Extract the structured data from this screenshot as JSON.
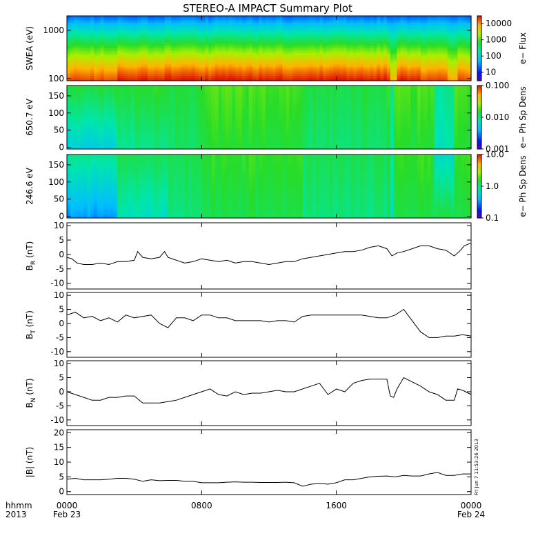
{
  "chart_data": {
    "type": "multi-panel",
    "title": "STEREO-A IMPACT Summary Plot",
    "x_axis": {
      "range_hours": [
        0,
        24
      ],
      "ticks": [
        {
          "hour": 0,
          "label": "0000",
          "sublabel": "Feb 23"
        },
        {
          "hour": 8,
          "label": "0800",
          "sublabel": ""
        },
        {
          "hour": 16,
          "label": "1600",
          "sublabel": ""
        },
        {
          "hour": 24,
          "label": "0000",
          "sublabel": "Feb 24"
        }
      ],
      "corner_label_1": "hhmm",
      "corner_label_2": "2013"
    },
    "side_stamp": "Fri Jun  7 11:53:26 2013",
    "spectrograms": [
      {
        "type": "heatmap",
        "ylabel": "SWEA (eV)",
        "ylog": true,
        "ylim": [
          90,
          2000
        ],
        "yticks": [
          {
            "v": 1000,
            "label": "1000"
          },
          {
            "v": 100,
            "label": "100"
          }
        ],
        "cbar_label": "e− Flux",
        "cbar_log": true,
        "cbar_range": [
          3,
          30000
        ],
        "cbar_ticks": [
          {
            "v": 10000,
            "label": "10000"
          },
          {
            "v": 1000,
            "label": "1000"
          },
          {
            "v": 100,
            "label": "100"
          },
          {
            "v": 10,
            "label": "10"
          }
        ]
      },
      {
        "type": "heatmap",
        "ylabel": "650.7 eV",
        "ylog": false,
        "ylim": [
          -5,
          180
        ],
        "yticks": [
          {
            "v": 150,
            "label": "150"
          },
          {
            "v": 100,
            "label": "100"
          },
          {
            "v": 50,
            "label": "50"
          },
          {
            "v": 0,
            "label": "0"
          }
        ],
        "cbar_label": "e− Ph Sp Dens",
        "cbar_log": true,
        "cbar_range": [
          0.001,
          0.1
        ],
        "cbar_ticks": [
          {
            "v": 0.1,
            "label": "0.100"
          },
          {
            "v": 0.01,
            "label": "0.010"
          },
          {
            "v": 0.001,
            "label": "0.001"
          }
        ]
      },
      {
        "type": "heatmap",
        "ylabel": "246.6 eV",
        "ylog": false,
        "ylim": [
          -5,
          180
        ],
        "yticks": [
          {
            "v": 150,
            "label": "150"
          },
          {
            "v": 100,
            "label": "100"
          },
          {
            "v": 50,
            "label": "50"
          },
          {
            "v": 0,
            "label": "0"
          }
        ],
        "cbar_label": "e− Ph Sp Dens",
        "cbar_log": true,
        "cbar_range": [
          0.1,
          10
        ],
        "cbar_ticks": [
          {
            "v": 10,
            "label": "10.0"
          },
          {
            "v": 1,
            "label": "1.0"
          },
          {
            "v": 0.1,
            "label": "0.1"
          }
        ]
      }
    ],
    "line_panels": [
      {
        "type": "line",
        "ylabel": "B",
        "ylabel_sub": "R",
        "ylabel_unit": " (nT)",
        "ylim": [
          -12,
          11
        ],
        "yticks": [
          10,
          5,
          0,
          -5,
          -10
        ],
        "series": [
          {
            "x": [
              0,
              0.3,
              0.6,
              1,
              1.5,
              2,
              2.5,
              3,
              3.5,
              4,
              4.2,
              4.5,
              5,
              5.5,
              5.8,
              6,
              6.5,
              7,
              7.5,
              8,
              8.5,
              9,
              9.5,
              10,
              10.5,
              11,
              11.5,
              12,
              12.5,
              13,
              13.5,
              14,
              14.5,
              15,
              15.5,
              16,
              16.5,
              17,
              17.5,
              18,
              18.5,
              19,
              19.3,
              19.6,
              20,
              20.5,
              21,
              21.5,
              22,
              22.5,
              23,
              23.3,
              23.6,
              24
            ],
            "y": [
              -1,
              -1.5,
              -3,
              -3.5,
              -3.5,
              -3,
              -3.5,
              -2.5,
              -2.5,
              -2,
              1,
              -1,
              -1.5,
              -1,
              1,
              -1,
              -2,
              -3,
              -2.5,
              -1.5,
              -2,
              -2.5,
              -2,
              -3,
              -2.5,
              -2.5,
              -3,
              -3.5,
              -3,
              -2.5,
              -2.5,
              -1.5,
              -1,
              -0.5,
              0,
              0.5,
              1,
              1,
              1.5,
              2.5,
              3,
              2,
              -0.5,
              0.5,
              1,
              2,
              3,
              3,
              2,
              1.5,
              -0.5,
              1,
              3,
              4
            ]
          }
        ]
      },
      {
        "type": "line",
        "ylabel": "B",
        "ylabel_sub": "T",
        "ylabel_unit": " (nT)",
        "ylim": [
          -12,
          11
        ],
        "yticks": [
          10,
          5,
          0,
          -5,
          -10
        ],
        "series": [
          {
            "x": [
              0,
              0.5,
              1,
              1.5,
              2,
              2.5,
              3,
              3.5,
              4,
              4.5,
              5,
              5.5,
              6,
              6.5,
              7,
              7.5,
              8,
              8.5,
              9,
              9.5,
              10,
              10.5,
              11,
              11.5,
              12,
              12.5,
              13,
              13.5,
              14,
              14.5,
              15,
              15.5,
              16,
              16.5,
              17,
              17.5,
              18,
              18.5,
              19,
              19.5,
              20,
              20.5,
              21,
              21.5,
              22,
              22.5,
              23,
              23.5,
              24
            ],
            "y": [
              3,
              4,
              2,
              2.5,
              1,
              2,
              0.5,
              3,
              2,
              2.5,
              3,
              0,
              -1.5,
              2,
              2,
              1,
              3,
              3,
              2,
              2,
              1,
              1,
              1,
              1,
              0.5,
              1,
              1,
              0.5,
              2.5,
              3,
              3,
              3,
              3,
              3,
              3,
              3,
              2.5,
              2,
              2,
              3,
              5,
              1,
              -3,
              -5,
              -5,
              -4.5,
              -4.5,
              -4,
              -4.5
            ]
          }
        ]
      },
      {
        "type": "line",
        "ylabel": "B",
        "ylabel_sub": "N",
        "ylabel_unit": " (nT)",
        "ylim": [
          -12,
          11
        ],
        "yticks": [
          10,
          5,
          0,
          -5,
          -10
        ],
        "series": [
          {
            "x": [
              0,
              0.5,
              1,
              1.5,
              2,
              2.5,
              3,
              3.5,
              4,
              4.5,
              5,
              5.5,
              6,
              6.5,
              7,
              7.5,
              8,
              8.5,
              9,
              9.5,
              10,
              10.5,
              11,
              11.5,
              12,
              12.5,
              13,
              13.5,
              14,
              14.5,
              15,
              15.5,
              16,
              16.5,
              17,
              17.5,
              18,
              18.5,
              19,
              19.2,
              19.4,
              19.6,
              20,
              20.5,
              21,
              21.5,
              22,
              22.5,
              23,
              23.2,
              23.5,
              24
            ],
            "y": [
              0,
              -1,
              -2,
              -3,
              -3,
              -2,
              -2,
              -1.5,
              -1.5,
              -4,
              -4,
              -4,
              -3.5,
              -3,
              -2,
              -1,
              0,
              1,
              -1,
              -1.5,
              0,
              -1,
              -0.5,
              -0.5,
              0,
              0.5,
              0,
              0,
              1,
              2,
              3,
              -1,
              1,
              0,
              3,
              4,
              4.5,
              4.5,
              4.5,
              -1.5,
              -2,
              1,
              5,
              3.5,
              2,
              0,
              -1,
              -3,
              -3,
              1,
              0.5,
              -1
            ]
          }
        ]
      },
      {
        "type": "line",
        "ylabel": "|B|",
        "ylabel_sub": "",
        "ylabel_unit": " (nT)",
        "ylim": [
          -1,
          21
        ],
        "yticks": [
          20,
          15,
          10,
          5,
          0
        ],
        "series": [
          {
            "x": [
              0,
              0.5,
              1,
              1.5,
              2,
              2.5,
              3,
              3.5,
              4,
              4.5,
              5,
              5.5,
              6,
              6.5,
              7,
              7.5,
              8,
              8.5,
              9,
              9.5,
              10,
              10.5,
              11,
              11.5,
              12,
              12.5,
              13,
              13.5,
              14,
              14.5,
              15,
              15.5,
              16,
              16.5,
              17,
              17.5,
              18,
              18.5,
              19,
              19.5,
              20,
              20.5,
              21,
              21.5,
              22,
              22.5,
              23,
              23.5,
              24
            ],
            "y": [
              4.2,
              4.5,
              4,
              4,
              4,
              4.2,
              4.5,
              4.5,
              4.2,
              3.5,
              4,
              3.7,
              3.8,
              3.8,
              3.5,
              3.5,
              3,
              3,
              3,
              3.2,
              3.3,
              3.2,
              3.2,
              3.1,
              3.1,
              3.1,
              3.2,
              3,
              1.8,
              2.5,
              2.8,
              2.5,
              3,
              4,
              4,
              4.5,
              5,
              5.2,
              5.3,
              5,
              5.5,
              5.3,
              5.3,
              6,
              6.5,
              5.5,
              5.5,
              6,
              6
            ]
          }
        ]
      }
    ]
  }
}
